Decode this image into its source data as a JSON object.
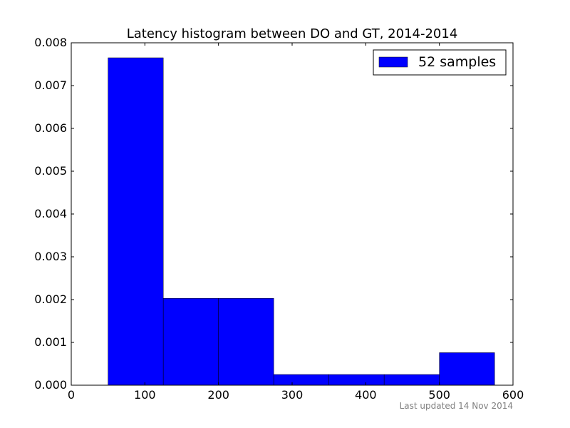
{
  "chart_data": {
    "type": "bar",
    "title": "Latency histogram between DO and GT, 2014-2014",
    "xlabel": "",
    "ylabel": "",
    "xlim": [
      0,
      600
    ],
    "ylim": [
      0,
      0.008
    ],
    "grid": false,
    "legend_position": "top-right",
    "x_ticks": [
      "0",
      "100",
      "200",
      "300",
      "400",
      "500",
      "600"
    ],
    "y_ticks": [
      "0.000",
      "0.001",
      "0.002",
      "0.003",
      "0.004",
      "0.005",
      "0.006",
      "0.007",
      "0.008"
    ],
    "bin_edges": [
      50,
      125,
      200,
      275,
      350,
      425,
      500,
      575
    ],
    "series": [
      {
        "name": "52 samples",
        "color": "#0000ff",
        "values": [
          0.00765,
          0.00203,
          0.00203,
          0.00025,
          0.00025,
          0.00025,
          0.00076
        ]
      }
    ]
  },
  "footer": {
    "note": "Last updated 14 Nov 2014"
  }
}
